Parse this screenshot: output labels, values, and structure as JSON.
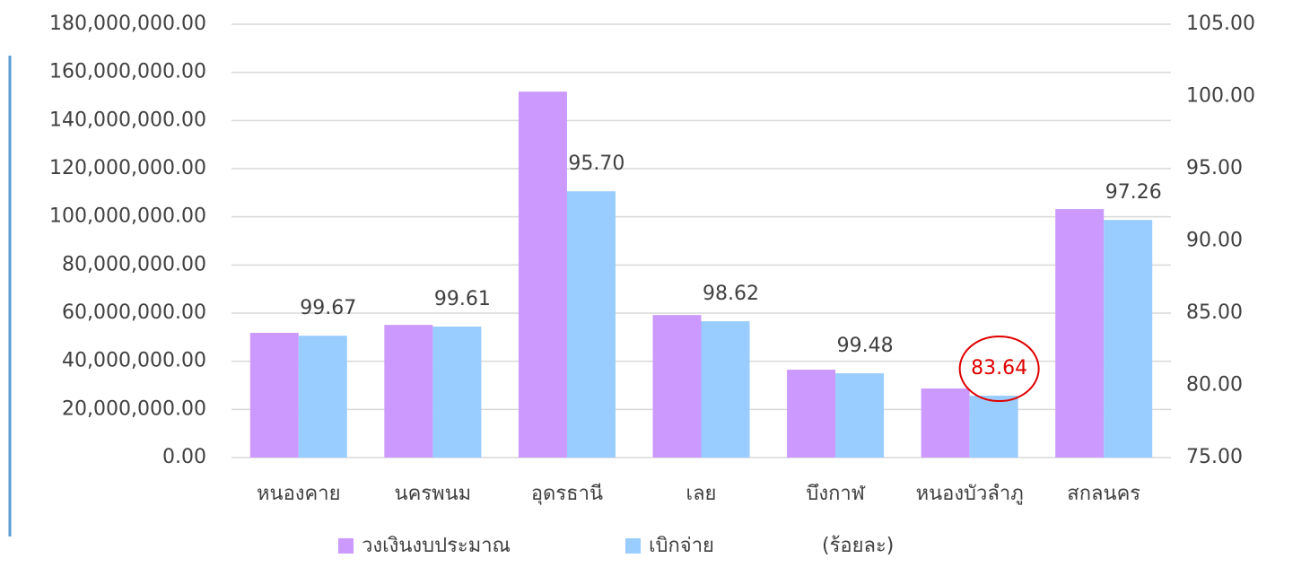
{
  "chart_data": {
    "type": "bar",
    "categories": [
      "หนองคาย",
      "นครพนม",
      "อุดรธานี",
      "เลย",
      "บึงกาฬ",
      "หนองบัวลำภู",
      "สกลนคร"
    ],
    "series": [
      {
        "name": "วงเงินงบประมาณ",
        "color": "#cc99ff",
        "values": [
          51800000,
          55100000,
          152000000,
          59200000,
          36500000,
          28700000,
          103200000
        ]
      },
      {
        "name": "เบิกจ่าย",
        "color": "#99ccff",
        "values": [
          50600000,
          54400000,
          110600000,
          56600000,
          35000000,
          25700000,
          98700000
        ]
      },
      {
        "name": "(ร้อยละ)",
        "axis": "y2",
        "colors": [
          "#404040",
          "#404040",
          "#404040",
          "#404040",
          "#404040",
          "#e00000",
          "#404040"
        ],
        "values": [
          99.67,
          99.61,
          95.7,
          98.62,
          99.48,
          83.64,
          97.26
        ],
        "value_labels": [
          "99.67",
          "99.61",
          "95.70",
          "98.62",
          "99.48",
          "83.64",
          "97.26"
        ]
      }
    ],
    "ylim": [
      0,
      180000000
    ],
    "yticks": [
      {
        "value": 0,
        "label": "0.00"
      },
      {
        "value": 20000000,
        "label": "20,000,000.00"
      },
      {
        "value": 40000000,
        "label": "40,000,000.00"
      },
      {
        "value": 60000000,
        "label": "60,000,000.00"
      },
      {
        "value": 80000000,
        "label": "80,000,000.00"
      },
      {
        "value": 100000000,
        "label": "100,000,000.00"
      },
      {
        "value": 120000000,
        "label": "120,000,000.00"
      },
      {
        "value": 140000000,
        "label": "140,000,000.00"
      },
      {
        "value": 160000000,
        "label": "160,000,000.00"
      },
      {
        "value": 180000000,
        "label": "180,000,000.00"
      }
    ],
    "y2lim": [
      75,
      105
    ],
    "y2ticks": [
      {
        "value": 75,
        "label": "75.00"
      },
      {
        "value": 80,
        "label": "80.00"
      },
      {
        "value": 85,
        "label": "85.00"
      },
      {
        "value": 90,
        "label": "90.00"
      },
      {
        "value": 95,
        "label": "95.00"
      },
      {
        "value": 100,
        "label": "100.00"
      },
      {
        "value": 105,
        "label": "105.00"
      }
    ],
    "grid": true
  }
}
